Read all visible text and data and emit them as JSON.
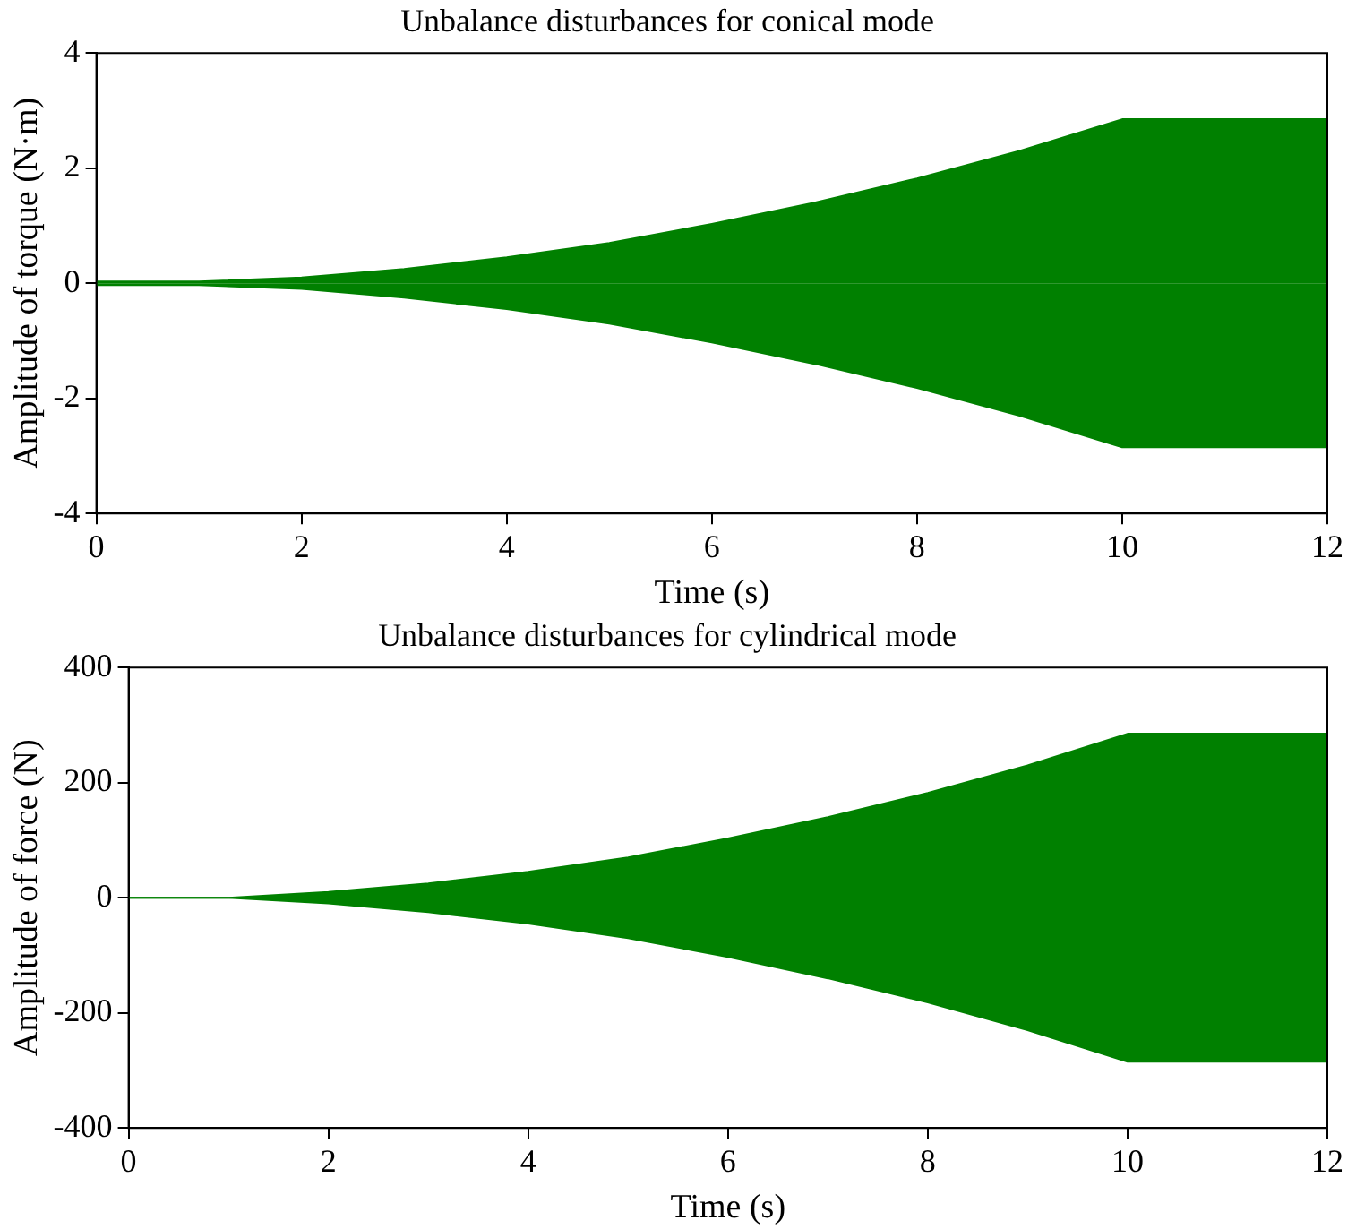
{
  "chart_data": [
    {
      "type": "area",
      "title": "Unbalance disturbances for conical mode",
      "xlabel": "Time (s)",
      "ylabel": "Amplitude of torque (N·m)",
      "x": [
        0,
        1,
        2,
        3,
        4,
        5,
        6,
        7,
        8,
        9,
        10,
        12
      ],
      "series": [
        {
          "color": "#008000",
          "values": [
            0.03,
            0.03,
            0.1,
            0.25,
            0.45,
            0.7,
            1.03,
            1.4,
            1.82,
            2.3,
            2.85,
            2.85
          ]
        },
        {
          "color": "#008000",
          "values": [
            -0.03,
            -0.03,
            -0.1,
            -0.25,
            -0.45,
            -0.7,
            -1.03,
            -1.4,
            -1.82,
            -2.3,
            -2.85,
            -2.85
          ]
        }
      ],
      "xlim": [
        0,
        12
      ],
      "xticks": [
        0,
        2,
        4,
        6,
        8,
        10,
        12
      ],
      "ylim": [
        -4,
        4
      ],
      "yticks": [
        -4,
        -2,
        0,
        2,
        4
      ],
      "grid": false,
      "legend": false
    },
    {
      "type": "area",
      "title": "Unbalance disturbances for cylindrical mode",
      "xlabel": "Time (s)",
      "ylabel": "Amplitude of force (N)",
      "x": [
        0,
        1,
        2,
        3,
        4,
        5,
        6,
        7,
        8,
        9,
        10,
        12
      ],
      "series": [
        {
          "color": "#008000",
          "values": [
            0,
            0,
            10,
            25,
            45,
            70,
            103,
            140,
            182,
            230,
            285,
            285
          ]
        },
        {
          "color": "#008000",
          "values": [
            0,
            0,
            -10,
            -25,
            -45,
            -70,
            -103,
            -140,
            -182,
            -230,
            -285,
            -285
          ]
        }
      ],
      "xlim": [
        0,
        12
      ],
      "xticks": [
        0,
        2,
        4,
        6,
        8,
        10,
        12
      ],
      "ylim": [
        -400,
        400
      ],
      "yticks": [
        -400,
        -200,
        0,
        200,
        400
      ],
      "grid": false,
      "legend": false
    }
  ]
}
